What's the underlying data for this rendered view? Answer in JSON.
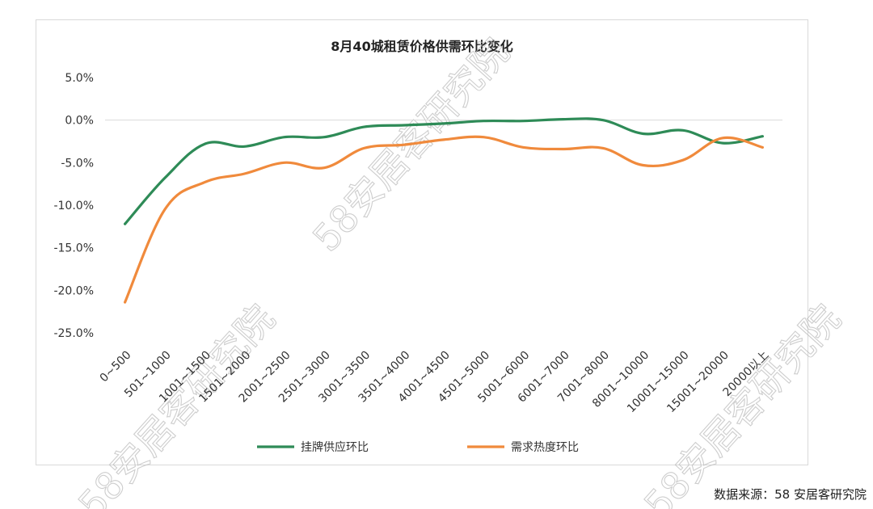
{
  "source_note": "数据来源：58 安居客研究院",
  "watermark_text": "58安居客研究院",
  "chart_data": {
    "type": "line",
    "title": "8月40城租赁价格供需环比变化",
    "categories": [
      "0~500",
      "501~1000",
      "1001~1500",
      "1501~2000",
      "2001~2500",
      "2501~3000",
      "3001~3500",
      "3501~4000",
      "4001~4500",
      "4501~5000",
      "5001~6000",
      "6001~7000",
      "7001~8000",
      "8001~10000",
      "10001~15000",
      "15001~20000",
      "20000以上"
    ],
    "ylim": [
      -25,
      5
    ],
    "yticks": [
      5,
      0,
      -5,
      -10,
      -15,
      -20,
      -25
    ],
    "ytick_labels": [
      "5.0%",
      "0.0%",
      "-5.0%",
      "-10.0%",
      "-15.0%",
      "-20.0%",
      "-25.0%"
    ],
    "grid": "y-zero-line",
    "legend_position": "bottom",
    "series": [
      {
        "name": "挂牌供应环比",
        "color": "#2e8b57",
        "values": [
          -12.2,
          -6.8,
          -2.8,
          -3.1,
          -2.0,
          -2.0,
          -0.8,
          -0.6,
          -0.4,
          -0.1,
          -0.1,
          0.1,
          0.0,
          -1.6,
          -1.2,
          -2.7,
          -1.9
        ]
      },
      {
        "name": "需求热度环比",
        "color": "#f08a3c",
        "values": [
          -21.4,
          -10.5,
          -7.3,
          -6.3,
          -5.0,
          -5.6,
          -3.3,
          -2.9,
          -2.3,
          -2.0,
          -3.2,
          -3.4,
          -3.3,
          -5.3,
          -4.7,
          -2.1,
          -3.2
        ]
      }
    ]
  }
}
